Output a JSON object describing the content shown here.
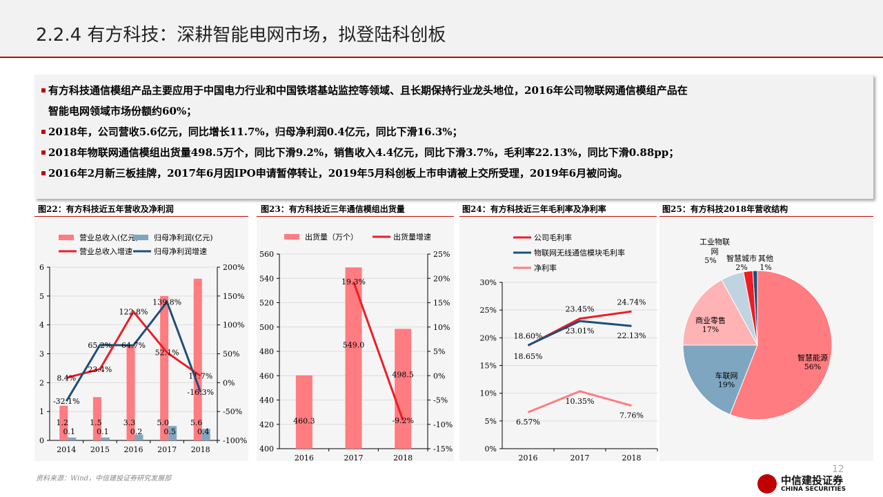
{
  "title": "2.2.4 有方科技：深耕智能电网市场，拟登陆科创板",
  "bullets": [
    "有方科技通信模组产品主要应用于中国电力行业和中国铁塔基站监控等领域、且长期保持行业龙头地位，2016年公司物联网通信模组产品在",
    "智能电网领域市场份额约60%；",
    "2018年，公司营收5.6亿元，同比增长11.7%，归母净利润0.4亿元，同比下滑16.3%；",
    "2018年物联网通信模组出货量498.5万个，同比下滑9.2%，销售收入4.4亿元，同比下滑3.7%，毛利率22.13%，同比下滑0.88pp；",
    "2016年2月新三板挂牌，2017年6月因IPO申请暂停转让，2019年5月科创板上市申请被上交所受理，2019年6月被问询。"
  ],
  "source": "资料来源：Wind，中信建投证券研究发展部",
  "page_number": "12",
  "logo": {
    "cn": "中信建投证券",
    "en": "CHINA SECURITIES"
  },
  "colors": {
    "accent": "#c00000",
    "pink": "#ff7c80",
    "steel": "#7fa6c0",
    "red": "#ee1c25",
    "navy": "#1f4e79"
  },
  "chart_data": [
    {
      "type": "bar",
      "title": "图22：有方科技近五年营收及净利润",
      "categories": [
        "2014",
        "2015",
        "2016",
        "2017",
        "2018"
      ],
      "series": [
        {
          "name": "营业总收入(亿元)",
          "kind": "bar",
          "axis": "left",
          "values": [
            1.2,
            1.5,
            3.3,
            5.0,
            5.6
          ],
          "labels": [
            "1.2",
            "1.5",
            "3.3",
            "5.0",
            "5.6"
          ]
        },
        {
          "name": "归母净利润(亿元)",
          "kind": "bar",
          "axis": "left",
          "values": [
            0.1,
            0.1,
            0.2,
            0.5,
            0.4
          ],
          "labels": [
            "0.1",
            "0.1",
            "0.2",
            "0.5",
            "0.4"
          ]
        },
        {
          "name": "营业总收入增速",
          "kind": "line",
          "axis": "right",
          "values": [
            8.4,
            23.4,
            122.8,
            52.1,
            11.7
          ],
          "labels": [
            "8.4%",
            "23.4%",
            "122.8%",
            "52.1%",
            "11.7%"
          ]
        },
        {
          "name": "归母净利润增速",
          "kind": "line",
          "axis": "right",
          "values": [
            -32.1,
            65.2,
            64.7,
            139.8,
            -16.3
          ],
          "labels": [
            "-32.1%",
            "65.2%",
            "64.7%",
            "139.8%",
            "-16.3%"
          ]
        }
      ],
      "ylim": [
        0,
        6
      ],
      "yticks": [
        "0",
        "1",
        "2",
        "3",
        "4",
        "5",
        "6"
      ],
      "y2lim": [
        -100,
        200
      ],
      "y2ticks": [
        "-100%",
        "-50%",
        "0%",
        "50%",
        "100%",
        "150%",
        "200%"
      ],
      "legend": "top"
    },
    {
      "type": "bar",
      "title": "图23：有方科技近三年通信模组出货量",
      "categories": [
        "2016",
        "2017",
        "2018"
      ],
      "series": [
        {
          "name": "出货量（万个）",
          "kind": "bar",
          "axis": "left",
          "values": [
            460.3,
            549.0,
            498.5
          ],
          "labels": [
            "460.3",
            "549.0",
            "498.5"
          ]
        },
        {
          "name": "出货量增速",
          "kind": "line",
          "axis": "right",
          "values": [
            null,
            19.3,
            -9.2
          ],
          "labels": [
            "",
            "19.3%",
            "-9.2%"
          ]
        }
      ],
      "ylim": [
        400,
        560
      ],
      "yticks": [
        "400",
        "420",
        "440",
        "460",
        "480",
        "500",
        "520",
        "540",
        "560"
      ],
      "y2lim": [
        -15,
        25
      ],
      "y2ticks": [
        "-15%",
        "-10%",
        "-5%",
        "0%",
        "5%",
        "10%",
        "15%",
        "20%",
        "25%"
      ],
      "legend": "top"
    },
    {
      "type": "line",
      "title": "图24：有方科技近三年毛利率及净利率",
      "categories": [
        "2016",
        "2017",
        "2018"
      ],
      "series": [
        {
          "name": "公司毛利率",
          "values": [
            18.6,
            23.45,
            24.74
          ],
          "labels": [
            "18.60%",
            "23.45%",
            "24.74%"
          ]
        },
        {
          "name": "物联网无线通信模块毛利率",
          "values": [
            18.65,
            23.01,
            22.13
          ],
          "labels": [
            "18.65%",
            "23.01%",
            "22.13%"
          ]
        },
        {
          "name": "净利率",
          "values": [
            6.57,
            10.35,
            7.76
          ],
          "labels": [
            "6.57%",
            "10.35%",
            "7.76%"
          ]
        }
      ],
      "ylim": [
        0,
        30
      ],
      "yticks": [
        "0%",
        "5%",
        "10%",
        "15%",
        "20%",
        "25%",
        "30%"
      ],
      "legend": "top"
    },
    {
      "type": "pie",
      "title": "图25：有方科技2018年营收结构",
      "slices": [
        {
          "label": "智慧能源",
          "value": 56,
          "pct": "56%"
        },
        {
          "label": "车联网",
          "value": 19,
          "pct": "19%"
        },
        {
          "label": "商业零售",
          "value": 17,
          "pct": "17%"
        },
        {
          "label": "工业物联网",
          "value": 5,
          "pct": "5%"
        },
        {
          "label": "智慧城市",
          "value": 2,
          "pct": "2%"
        },
        {
          "label": "其他",
          "value": 1,
          "pct": "1%"
        }
      ]
    }
  ]
}
